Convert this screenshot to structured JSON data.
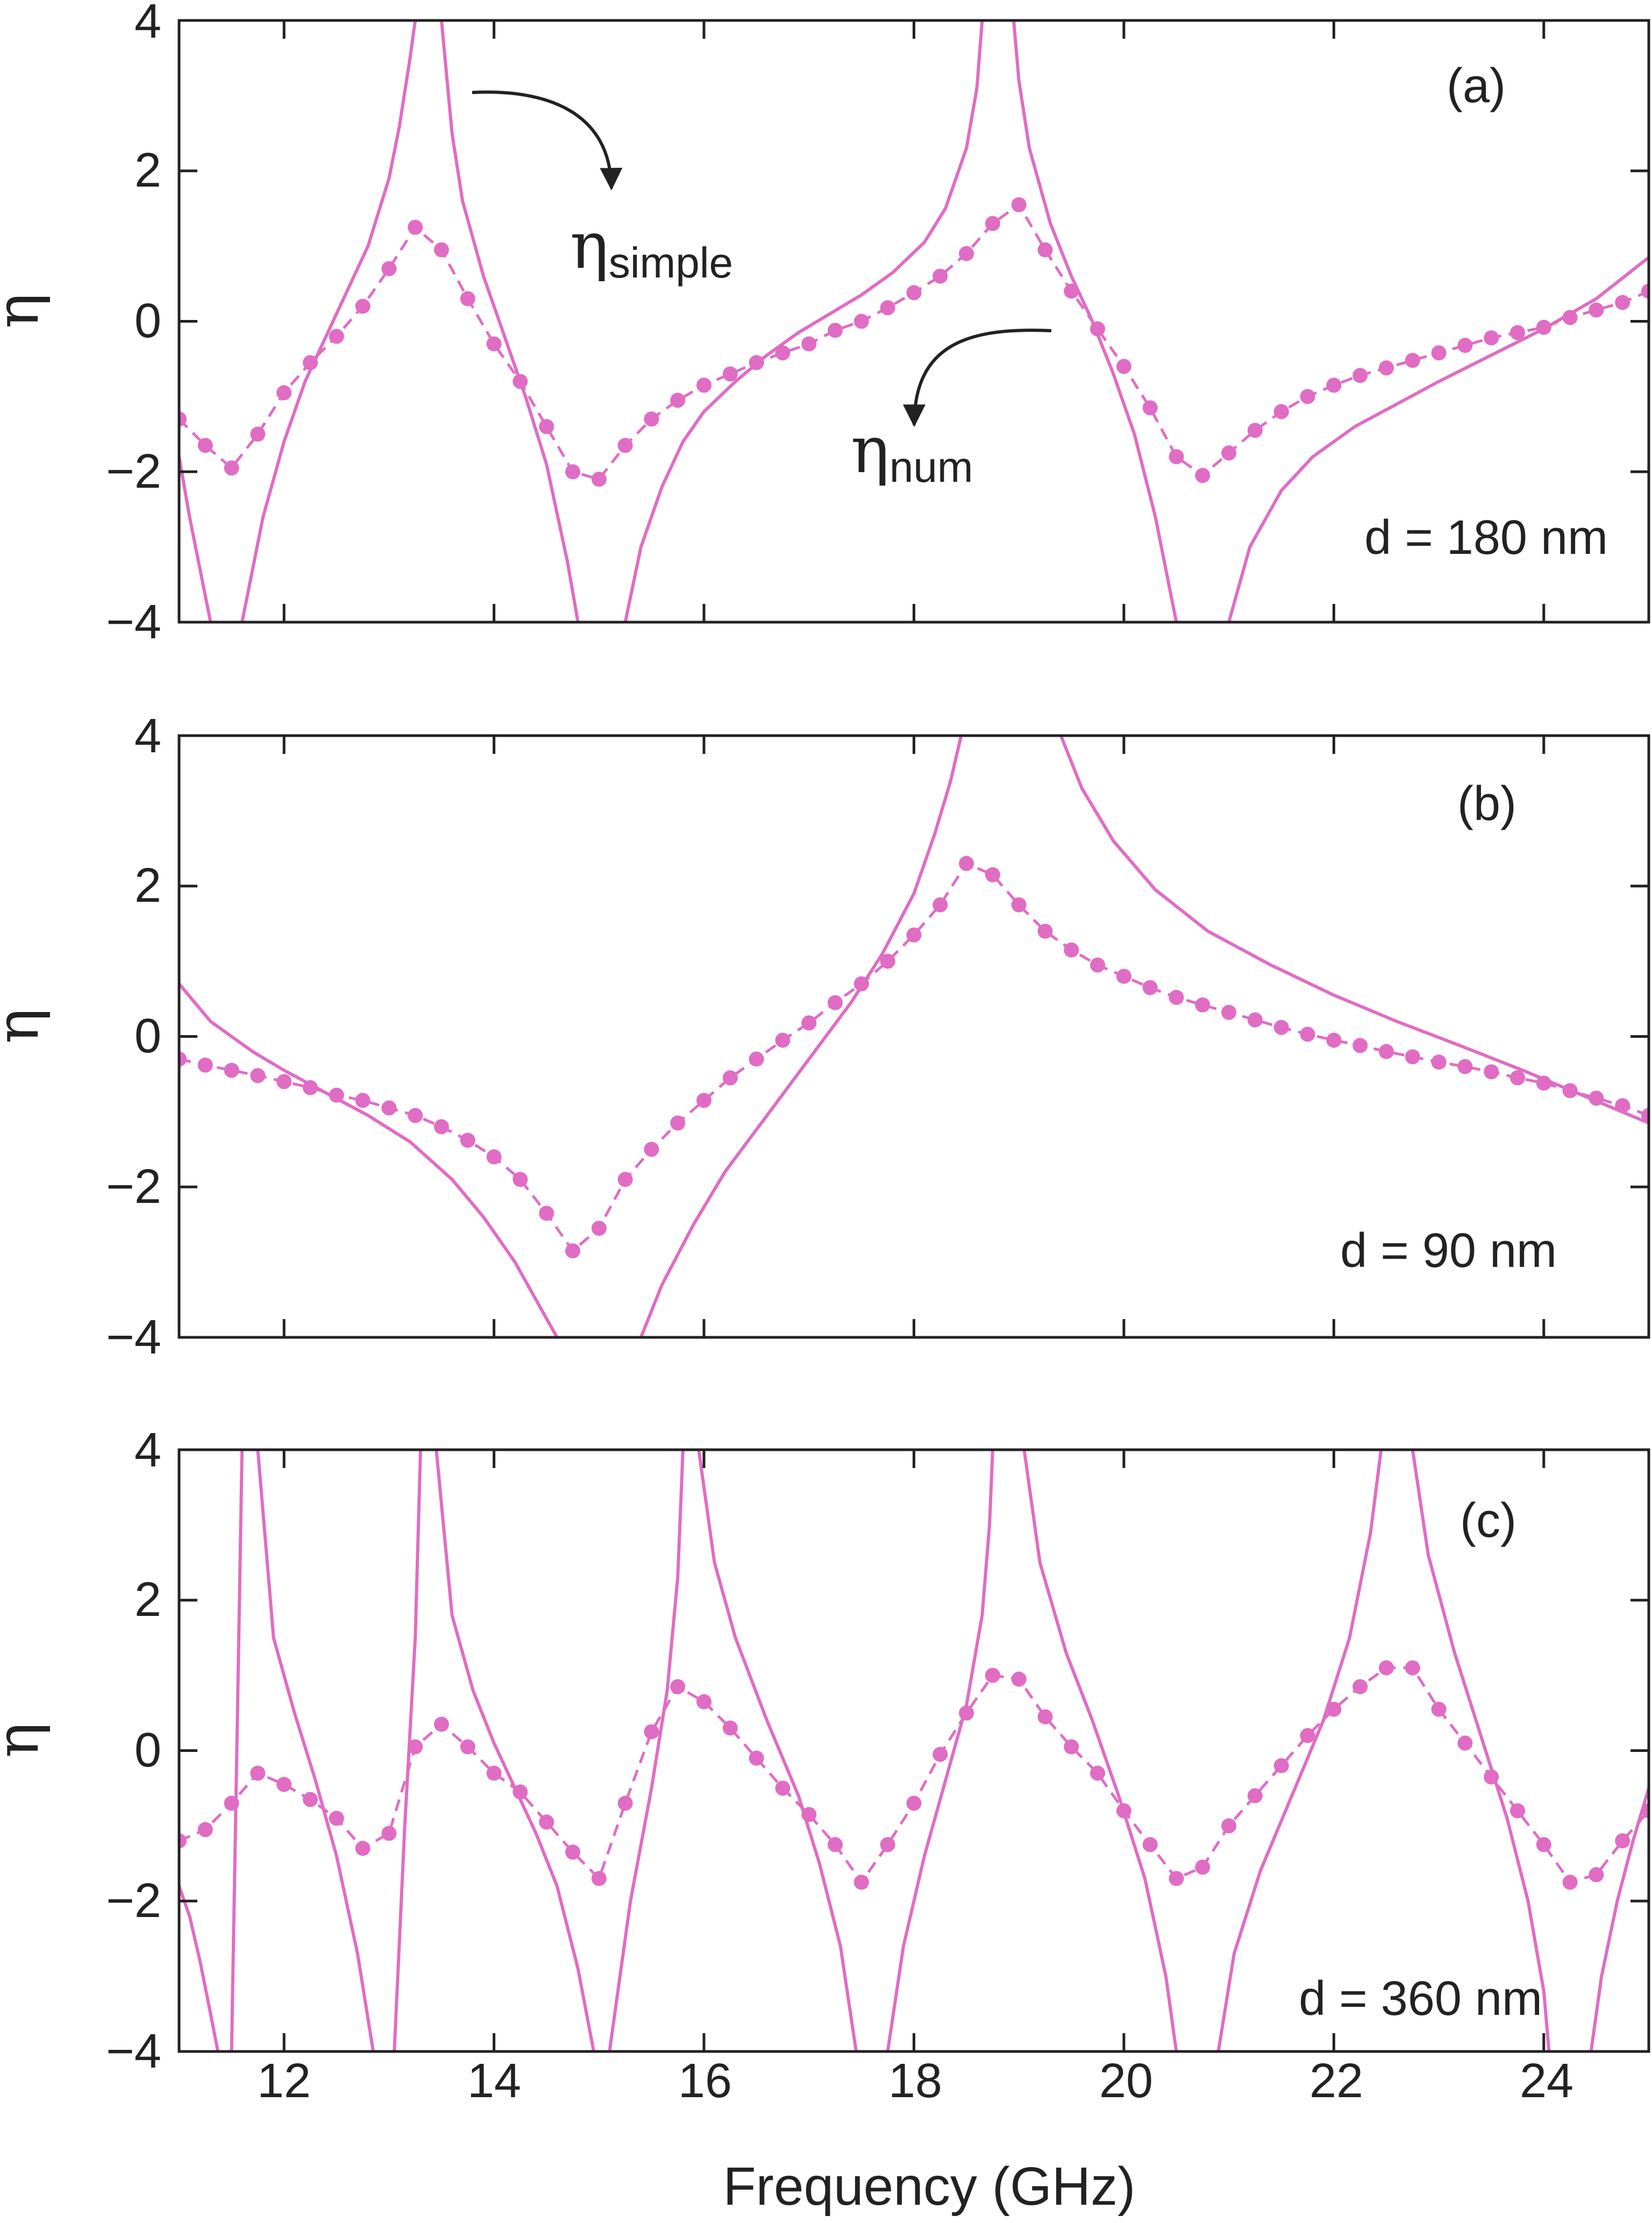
{
  "figure": {
    "xlabel": "Frequency (GHz)",
    "ylabel": "η",
    "xticks": [
      "12",
      "14",
      "16",
      "18",
      "20",
      "22",
      "24"
    ],
    "yticks": [
      "4",
      "2",
      "0",
      "−2",
      "−4"
    ],
    "annotation_simple": {
      "symbol": "η",
      "subscript": "simple"
    },
    "annotation_num": {
      "symbol": "η",
      "subscript": "num"
    }
  },
  "colors": {
    "series": "#e06cc4",
    "axes": "#222222",
    "arrow": "#222222"
  },
  "chart_data": [
    {
      "type": "line",
      "panel_label": "(a)",
      "annotation": "d = 180 nm",
      "xlim": [
        11,
        25
      ],
      "ylim": [
        -4,
        4
      ],
      "series": [
        {
          "name": "η_simple",
          "style": "solid line",
          "segments": [
            {
              "x": [
                11.0,
                11.1,
                11.2,
                11.3
              ],
              "y": [
                -1.8,
                -2.6,
                -3.3,
                -4.0
              ]
            },
            {
              "x": [
                11.6,
                11.8,
                12.0,
                12.2,
                12.4,
                12.6,
                12.8,
                13.0,
                13.1,
                13.2,
                13.25
              ],
              "y": [
                -4.0,
                -2.6,
                -1.6,
                -0.8,
                -0.2,
                0.4,
                1.0,
                1.9,
                2.6,
                3.5,
                4.0
              ]
            },
            {
              "x": [
                13.5,
                13.6,
                13.7,
                13.9,
                14.1,
                14.3,
                14.5,
                14.7,
                14.8
              ],
              "y": [
                4.0,
                2.5,
                1.6,
                0.6,
                -0.2,
                -1.0,
                -1.9,
                -3.2,
                -4.0
              ]
            },
            {
              "x": [
                15.25,
                15.4,
                15.6,
                15.8,
                16.0,
                16.3,
                16.6,
                16.9,
                17.2,
                17.5,
                17.8,
                18.1,
                18.3,
                18.5,
                18.6,
                18.65
              ],
              "y": [
                -4.0,
                -3.0,
                -2.2,
                -1.6,
                -1.2,
                -0.8,
                -0.45,
                -0.15,
                0.1,
                0.35,
                0.65,
                1.05,
                1.5,
                2.3,
                3.1,
                4.0
              ]
            },
            {
              "x": [
                18.95,
                19.0,
                19.1,
                19.3,
                19.5,
                19.7,
                19.9,
                20.1,
                20.3,
                20.5
              ],
              "y": [
                4.0,
                3.2,
                2.3,
                1.3,
                0.6,
                0.0,
                -0.7,
                -1.5,
                -2.6,
                -4.0
              ]
            },
            {
              "x": [
                21.0,
                21.2,
                21.5,
                21.8,
                22.2,
                22.6,
                23.0,
                23.5,
                24.0,
                24.5,
                25.0
              ],
              "y": [
                -4.0,
                -3.0,
                -2.25,
                -1.8,
                -1.4,
                -1.1,
                -0.8,
                -0.45,
                -0.1,
                0.3,
                0.85
              ]
            }
          ]
        },
        {
          "name": "η_num",
          "style": "dashed line with dots",
          "x": [
            11.0,
            11.25,
            11.5,
            11.75,
            12.0,
            12.25,
            12.5,
            12.75,
            13.0,
            13.25,
            13.5,
            13.75,
            14.0,
            14.25,
            14.5,
            14.75,
            15.0,
            15.25,
            15.5,
            15.75,
            16.0,
            16.25,
            16.5,
            16.75,
            17.0,
            17.25,
            17.5,
            17.75,
            18.0,
            18.25,
            18.5,
            18.75,
            19.0,
            19.25,
            19.5,
            19.75,
            20.0,
            20.25,
            20.5,
            20.75,
            21.0,
            21.25,
            21.5,
            21.75,
            22.0,
            22.25,
            22.5,
            22.75,
            23.0,
            23.25,
            23.5,
            23.75,
            24.0,
            24.25,
            24.5,
            24.75,
            25.0
          ],
          "y": [
            -1.3,
            -1.65,
            -1.95,
            -1.5,
            -0.95,
            -0.55,
            -0.2,
            0.2,
            0.7,
            1.25,
            0.95,
            0.3,
            -0.3,
            -0.8,
            -1.4,
            -2.0,
            -2.1,
            -1.65,
            -1.3,
            -1.05,
            -0.85,
            -0.7,
            -0.55,
            -0.42,
            -0.3,
            -0.12,
            0.0,
            0.18,
            0.38,
            0.6,
            0.9,
            1.3,
            1.55,
            0.95,
            0.4,
            -0.1,
            -0.6,
            -1.15,
            -1.8,
            -2.05,
            -1.75,
            -1.45,
            -1.2,
            -1.0,
            -0.85,
            -0.72,
            -0.62,
            -0.52,
            -0.42,
            -0.32,
            -0.22,
            -0.15,
            -0.08,
            0.05,
            0.15,
            0.25,
            0.4
          ]
        }
      ]
    },
    {
      "type": "line",
      "panel_label": "(b)",
      "annotation": "d = 90 nm",
      "xlim": [
        11,
        25
      ],
      "ylim": [
        -4,
        4
      ],
      "series": [
        {
          "name": "η_simple",
          "style": "solid line",
          "segments": [
            {
              "x": [
                11.0,
                11.3,
                11.7,
                12.0,
                12.4,
                12.8,
                13.2,
                13.6,
                13.9,
                14.2,
                14.4,
                14.6
              ],
              "y": [
                0.7,
                0.2,
                -0.2,
                -0.45,
                -0.75,
                -1.05,
                -1.4,
                -1.9,
                -2.4,
                -3.0,
                -3.5,
                -4.0
              ]
            },
            {
              "x": [
                15.4,
                15.6,
                15.9,
                16.2,
                16.6,
                17.0,
                17.4,
                17.7,
                18.0,
                18.2,
                18.35,
                18.45
              ],
              "y": [
                -4.0,
                -3.3,
                -2.5,
                -1.8,
                -1.05,
                -0.3,
                0.45,
                1.1,
                1.9,
                2.7,
                3.4,
                4.0
              ]
            },
            {
              "x": [
                19.4,
                19.6,
                19.9,
                20.3,
                20.8,
                21.4,
                22.0,
                22.6,
                23.2,
                23.8,
                24.4,
                25.0
              ],
              "y": [
                4.0,
                3.3,
                2.6,
                1.95,
                1.4,
                0.95,
                0.55,
                0.2,
                -0.12,
                -0.45,
                -0.8,
                -1.15
              ]
            }
          ]
        },
        {
          "name": "η_num",
          "style": "dashed line with dots",
          "x": [
            11.0,
            11.25,
            11.5,
            11.75,
            12.0,
            12.25,
            12.5,
            12.75,
            13.0,
            13.25,
            13.5,
            13.75,
            14.0,
            14.25,
            14.5,
            14.75,
            15.0,
            15.25,
            15.5,
            15.75,
            16.0,
            16.25,
            16.5,
            16.75,
            17.0,
            17.25,
            17.5,
            17.75,
            18.0,
            18.25,
            18.5,
            18.75,
            19.0,
            19.25,
            19.5,
            19.75,
            20.0,
            20.25,
            20.5,
            20.75,
            21.0,
            21.25,
            21.5,
            21.75,
            22.0,
            22.25,
            22.5,
            22.75,
            23.0,
            23.25,
            23.5,
            23.75,
            24.0,
            24.25,
            24.5,
            24.75,
            25.0
          ],
          "y": [
            -0.3,
            -0.38,
            -0.45,
            -0.52,
            -0.6,
            -0.68,
            -0.78,
            -0.85,
            -0.95,
            -1.05,
            -1.2,
            -1.38,
            -1.6,
            -1.9,
            -2.35,
            -2.85,
            -2.55,
            -1.9,
            -1.5,
            -1.15,
            -0.85,
            -0.55,
            -0.3,
            -0.05,
            0.18,
            0.45,
            0.7,
            1.0,
            1.35,
            1.75,
            2.3,
            2.15,
            1.75,
            1.4,
            1.15,
            0.95,
            0.8,
            0.65,
            0.52,
            0.42,
            0.32,
            0.22,
            0.12,
            0.03,
            -0.05,
            -0.12,
            -0.2,
            -0.27,
            -0.34,
            -0.4,
            -0.47,
            -0.55,
            -0.62,
            -0.72,
            -0.82,
            -0.92,
            -1.05
          ]
        }
      ]
    },
    {
      "type": "line",
      "panel_label": "(c)",
      "annotation": "d = 360 nm",
      "xlim": [
        11,
        25
      ],
      "ylim": [
        -4,
        4
      ],
      "series": [
        {
          "name": "η_simple",
          "style": "solid line",
          "segments": [
            {
              "x": [
                11.0,
                11.1,
                11.2,
                11.3,
                11.37
              ],
              "y": [
                -1.8,
                -2.2,
                -2.8,
                -3.5,
                -4.0
              ]
            },
            {
              "x": [
                11.5,
                11.55,
                11.6
              ],
              "y": [
                -4.0,
                0.0,
                4.0
              ]
            },
            {
              "x": [
                11.75,
                11.9,
                12.1,
                12.3,
                12.5,
                12.7,
                12.85
              ],
              "y": [
                4.0,
                1.5,
                0.5,
                -0.4,
                -1.4,
                -2.7,
                -4.0
              ]
            },
            {
              "x": [
                13.05,
                13.15,
                13.25,
                13.3
              ],
              "y": [
                -4.0,
                -1.0,
                1.5,
                4.0
              ]
            },
            {
              "x": [
                13.45,
                13.6,
                13.8,
                14.0,
                14.2,
                14.4,
                14.6,
                14.8,
                14.95
              ],
              "y": [
                4.0,
                1.8,
                0.8,
                0.1,
                -0.5,
                -1.1,
                -1.8,
                -2.9,
                -4.0
              ]
            },
            {
              "x": [
                15.1,
                15.3,
                15.5,
                15.65,
                15.75,
                15.8
              ],
              "y": [
                -4.0,
                -2.0,
                -0.5,
                0.8,
                2.3,
                4.0
              ]
            },
            {
              "x": [
                15.95,
                16.1,
                16.3,
                16.6,
                16.9,
                17.1,
                17.3,
                17.45
              ],
              "y": [
                4.0,
                2.5,
                1.5,
                0.4,
                -0.6,
                -1.5,
                -2.6,
                -4.0
              ]
            },
            {
              "x": [
                17.75,
                17.9,
                18.1,
                18.3,
                18.5,
                18.65,
                18.72,
                18.75
              ],
              "y": [
                -4.0,
                -2.6,
                -1.4,
                -0.4,
                0.6,
                1.8,
                3.0,
                4.0
              ]
            },
            {
              "x": [
                19.05,
                19.2,
                19.45,
                19.7,
                19.95,
                20.2,
                20.4,
                20.5
              ],
              "y": [
                4.0,
                2.5,
                1.3,
                0.4,
                -0.6,
                -1.7,
                -3.0,
                -4.0
              ]
            },
            {
              "x": [
                20.9,
                21.05,
                21.3,
                21.6,
                21.9,
                22.15,
                22.35,
                22.45
              ],
              "y": [
                -4.0,
                -2.7,
                -1.6,
                -0.6,
                0.4,
                1.5,
                2.9,
                4.0
              ]
            },
            {
              "x": [
                22.75,
                22.9,
                23.15,
                23.4,
                23.65,
                23.85,
                24.0,
                24.05
              ],
              "y": [
                4.0,
                2.6,
                1.3,
                0.2,
                -0.9,
                -2.0,
                -3.2,
                -4.0
              ]
            },
            {
              "x": [
                24.45,
                24.55,
                24.7,
                24.85,
                25.0
              ],
              "y": [
                -4.0,
                -3.0,
                -2.0,
                -1.2,
                -0.5
              ]
            }
          ]
        },
        {
          "name": "η_num",
          "style": "dashed line with dots",
          "x": [
            11.0,
            11.25,
            11.5,
            11.75,
            12.0,
            12.25,
            12.5,
            12.75,
            13.0,
            13.25,
            13.5,
            13.75,
            14.0,
            14.25,
            14.5,
            14.75,
            15.0,
            15.25,
            15.5,
            15.75,
            16.0,
            16.25,
            16.5,
            16.75,
            17.0,
            17.25,
            17.5,
            17.75,
            18.0,
            18.25,
            18.5,
            18.75,
            19.0,
            19.25,
            19.5,
            19.75,
            20.0,
            20.25,
            20.5,
            20.75,
            21.0,
            21.25,
            21.5,
            21.75,
            22.0,
            22.25,
            22.5,
            22.75,
            23.0,
            23.25,
            23.5,
            23.75,
            24.0,
            24.25,
            24.5,
            24.75,
            25.0
          ],
          "y": [
            -1.2,
            -1.05,
            -0.7,
            -0.3,
            -0.45,
            -0.65,
            -0.9,
            -1.3,
            -1.1,
            0.05,
            0.35,
            0.05,
            -0.3,
            -0.55,
            -0.95,
            -1.35,
            -1.7,
            -0.7,
            0.25,
            0.85,
            0.65,
            0.3,
            -0.1,
            -0.5,
            -0.85,
            -1.25,
            -1.75,
            -1.25,
            -0.7,
            -0.05,
            0.5,
            1.0,
            0.95,
            0.45,
            0.05,
            -0.3,
            -0.8,
            -1.25,
            -1.7,
            -1.55,
            -1.0,
            -0.6,
            -0.2,
            0.2,
            0.55,
            0.85,
            1.1,
            1.1,
            0.55,
            0.1,
            -0.35,
            -0.8,
            -1.25,
            -1.75,
            -1.65,
            -1.2,
            -0.8
          ]
        }
      ]
    }
  ]
}
